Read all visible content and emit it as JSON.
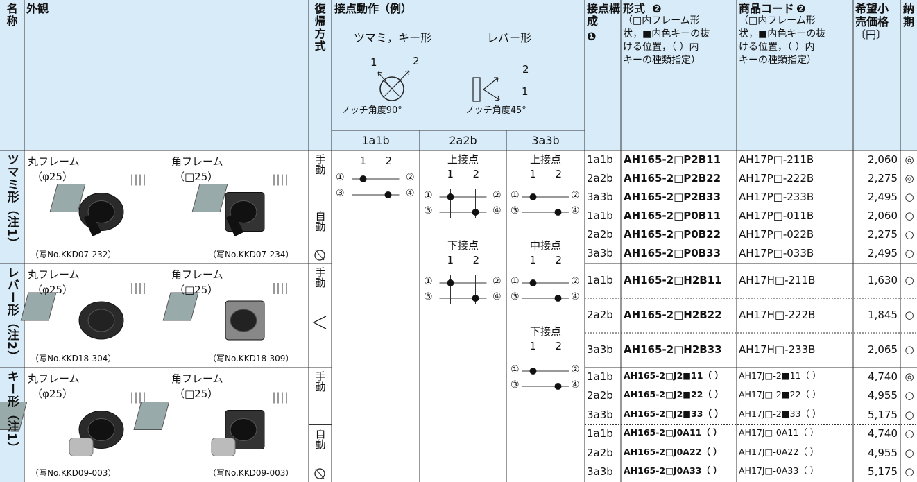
{
  "header": {
    "name": "名称",
    "appearance": "外観",
    "return_type": "復帰方式",
    "contact_action": "接点動作（例）",
    "knob_key_type": "ツマミ，キー形",
    "lever_type": "レバー形",
    "knob_positions": [
      "1",
      "2"
    ],
    "lever_positions": [
      "2",
      "1"
    ],
    "notch_90": "ノッチ角度90°",
    "notch_45": "ノッチ角度45°",
    "contact_config": "接点構成",
    "contact_config_ref": "❶",
    "model": "形式",
    "model_ref": "❷",
    "model_note": [
      "（□内フレーム形",
      "状，■内色キーの抜",
      "ける位置，（ ）内",
      "キーの種類指定）"
    ],
    "code": "商品コード",
    "code_ref": "❷",
    "code_note": [
      "（□内フレーム形",
      "状，■内色キーの抜",
      "ける位置，（ ）内",
      "キーの種類指定）"
    ],
    "price": [
      "希望小",
      "売価格",
      "〔円〕"
    ],
    "delivery": [
      "納",
      "期"
    ]
  },
  "contact_action": {
    "columns": [
      {
        "label": "1a1b",
        "diagrams": [
          {
            "poles": [
              "1",
              "2"
            ],
            "terminals": [
              "①",
              "②",
              "③",
              "④"
            ]
          }
        ]
      },
      {
        "label": "2a2b",
        "diagrams": [
          {
            "title": "上接点",
            "poles": [
              "1",
              "2"
            ],
            "terminals": [
              "①",
              "②",
              "③",
              "④"
            ]
          },
          {
            "title": "下接点",
            "poles": [
              "1",
              "2"
            ],
            "terminals": [
              "①",
              "②",
              "③",
              "④"
            ]
          }
        ]
      },
      {
        "label": "3a3b",
        "diagrams": [
          {
            "title": "上接点",
            "poles": [
              "1",
              "2"
            ],
            "terminals": [
              "①",
              "②",
              "③",
              "④"
            ]
          },
          {
            "title": "中接点",
            "poles": [
              "1",
              "2"
            ],
            "terminals": [
              "①",
              "②",
              "③",
              "④"
            ]
          },
          {
            "title": "下接点",
            "poles": [
              "1",
              "2"
            ],
            "terminals": [
              "①",
              "②",
              "③",
              "④"
            ]
          }
        ]
      }
    ]
  },
  "groups": [
    {
      "name": "ツマミ形（注1）",
      "round_frame": "丸フレーム",
      "round_size": "（φ25）",
      "square_frame": "角フレーム",
      "square_size": "（□25）",
      "round_photo": "（写No.KKD07-232）",
      "square_photo": "（写No.KKD07-234）",
      "returns": [
        {
          "label": "手動",
          "rows": [
            {
              "config": "1a1b",
              "model": "AH165-2□P2B11",
              "code": "AH17P□-211B",
              "price": "2,060",
              "delivery": "◎"
            },
            {
              "config": "2a2b",
              "model": "AH165-2□P2B22",
              "code": "AH17P□-222B",
              "price": "2,275",
              "delivery": "◎"
            },
            {
              "config": "3a3b",
              "model": "AH165-2□P2B33",
              "code": "AH17P□-233B",
              "price": "2,495",
              "delivery": "○"
            }
          ]
        },
        {
          "label": "自動",
          "rows": [
            {
              "config": "1a1b",
              "model": "AH165-2□P0B11",
              "code": "AH17P□-011B",
              "price": "2,060",
              "delivery": "○"
            },
            {
              "config": "2a2b",
              "model": "AH165-2□P0B22",
              "code": "AH17P□-022B",
              "price": "2,275",
              "delivery": "○"
            },
            {
              "config": "3a3b",
              "model": "AH165-2□P0B33",
              "code": "AH17P□-033B",
              "price": "2,495",
              "delivery": "○"
            }
          ]
        }
      ]
    },
    {
      "name": "レバー形（注2）",
      "round_frame": "丸フレーム",
      "round_size": "（φ25）",
      "square_frame": "角フレーム",
      "square_size": "（□25）",
      "round_photo": "（写No.KKD18-304）",
      "square_photo": "（写No.KKD18-309）",
      "returns": [
        {
          "label": "手動",
          "rows": [
            {
              "config": "1a1b",
              "model": "AH165-2□H2B11",
              "code": "AH17H□-211B",
              "price": "1,630",
              "delivery": "○"
            },
            {
              "config": "2a2b",
              "model": "AH165-2□H2B22",
              "code": "AH17H□-222B",
              "price": "1,845",
              "delivery": "○"
            },
            {
              "config": "3a3b",
              "model": "AH165-2□H2B33",
              "code": "AH17H□-233B",
              "price": "2,065",
              "delivery": "○"
            }
          ]
        }
      ]
    },
    {
      "name": "キー形（注1）",
      "round_frame": "丸フレーム",
      "round_size": "（φ25）",
      "square_frame": "角フレーム",
      "square_size": "（□25）",
      "round_photo": "（写No.KKD09-003）",
      "square_photo": "（写No.KKD09-003）",
      "returns": [
        {
          "label": "手動",
          "rows": [
            {
              "config": "1a1b",
              "model": "AH165-2□J2■11（ ）",
              "code": "AH17J□-2■11（ ）",
              "price": "4,740",
              "delivery": "◎"
            },
            {
              "config": "2a2b",
              "model": "AH165-2□J2■22（ ）",
              "code": "AH17J□-2■22（ ）",
              "price": "4,955",
              "delivery": "○"
            },
            {
              "config": "3a3b",
              "model": "AH165-2□J2■33（ ）",
              "code": "AH17J□-2■33（ ）",
              "price": "5,175",
              "delivery": "○"
            }
          ]
        },
        {
          "label": "自動",
          "rows": [
            {
              "config": "1a1b",
              "model": "AH165-2□J0A11（ ）",
              "code": "AH17J□-0A11（ ）",
              "price": "4,740",
              "delivery": "○"
            },
            {
              "config": "2a2b",
              "model": "AH165-2□J0A22（ ）",
              "code": "AH17J□-0A22（ ）",
              "price": "4,955",
              "delivery": "○"
            },
            {
              "config": "3a3b",
              "model": "AH165-2□J0A33（ ）",
              "code": "AH17J□-0A33（ ）",
              "price": "5,175",
              "delivery": "○"
            }
          ]
        }
      ]
    }
  ]
}
